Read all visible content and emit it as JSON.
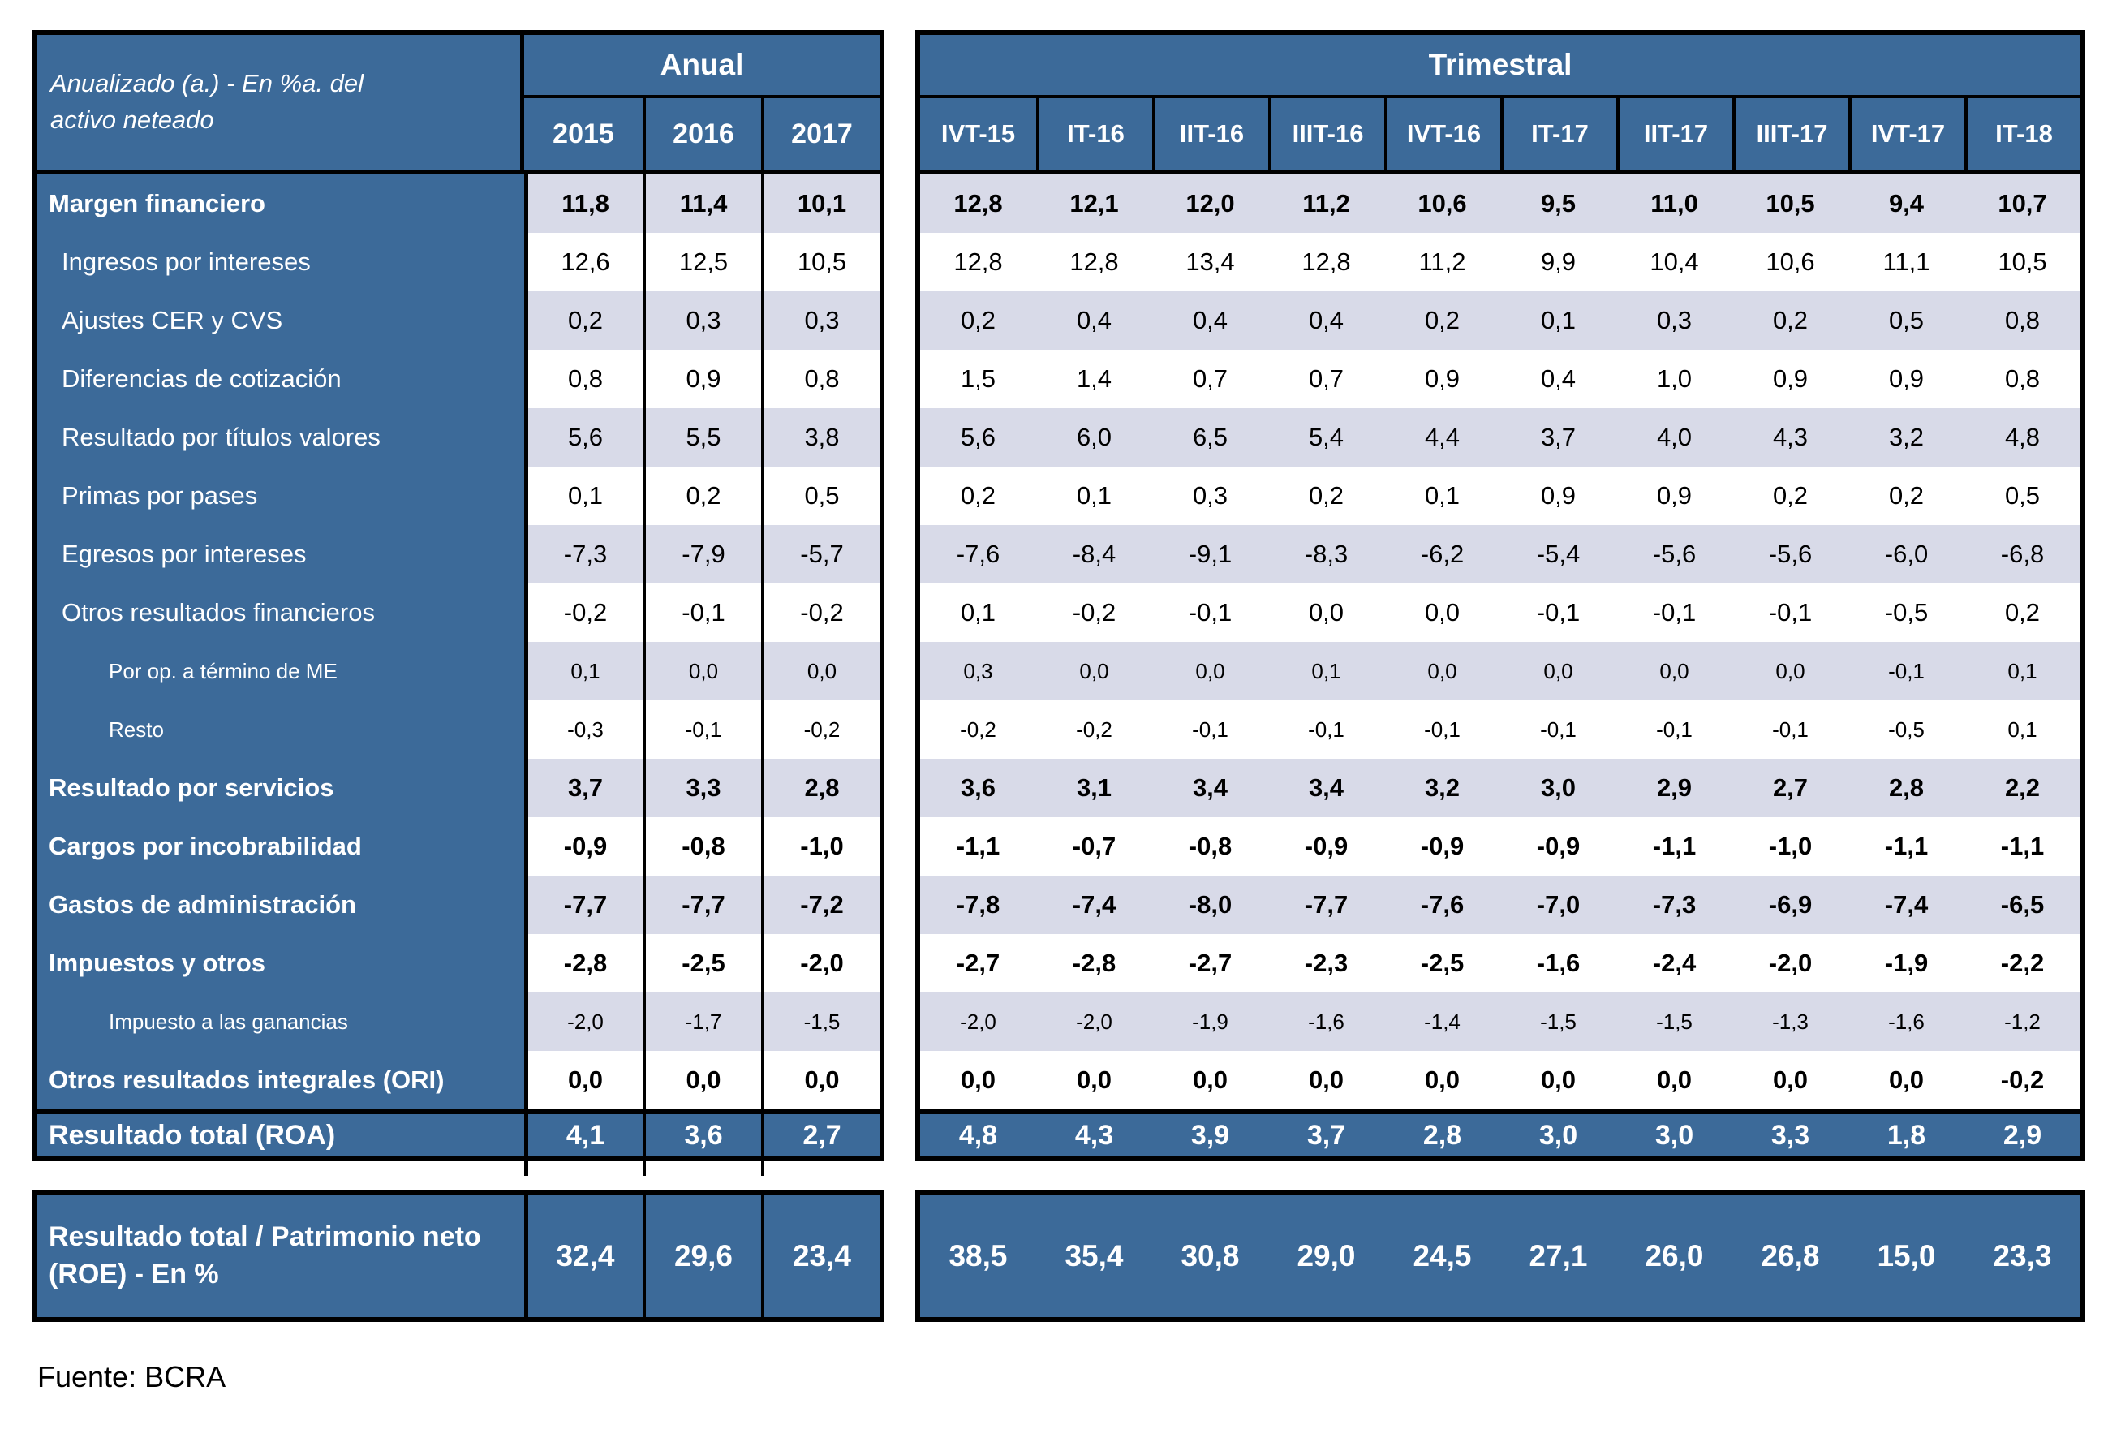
{
  "header": {
    "corner_label": "Anualizado (a.) - En %a. del activo neteado",
    "annual_group": "Anual",
    "quarterly_group": "Trimestral",
    "annual_columns": [
      "2015",
      "2016",
      "2017"
    ],
    "quarterly_columns": [
      "IVT-15",
      "IT-16",
      "IIT-16",
      "IIIT-16",
      "IVT-16",
      "IT-17",
      "IIT-17",
      "IIIT-17",
      "IVT-17",
      "IT-18"
    ]
  },
  "rows": [
    {
      "label": "Margen financiero",
      "style": "bold",
      "annual": [
        "11,8",
        "11,4",
        "10,1"
      ],
      "quarterly": [
        "12,8",
        "12,1",
        "12,0",
        "11,2",
        "10,6",
        "9,5",
        "11,0",
        "10,5",
        "9,4",
        "10,7"
      ]
    },
    {
      "label": "Ingresos por intereses",
      "style": "normal",
      "annual": [
        "12,6",
        "12,5",
        "10,5"
      ],
      "quarterly": [
        "12,8",
        "12,8",
        "13,4",
        "12,8",
        "11,2",
        "9,9",
        "10,4",
        "10,6",
        "11,1",
        "10,5"
      ]
    },
    {
      "label": "Ajustes CER y CVS",
      "style": "normal",
      "annual": [
        "0,2",
        "0,3",
        "0,3"
      ],
      "quarterly": [
        "0,2",
        "0,4",
        "0,4",
        "0,4",
        "0,2",
        "0,1",
        "0,3",
        "0,2",
        "0,5",
        "0,8"
      ]
    },
    {
      "label": "Diferencias de cotización",
      "style": "normal",
      "annual": [
        "0,8",
        "0,9",
        "0,8"
      ],
      "quarterly": [
        "1,5",
        "1,4",
        "0,7",
        "0,7",
        "0,9",
        "0,4",
        "1,0",
        "0,9",
        "0,9",
        "0,8"
      ]
    },
    {
      "label": "Resultado por títulos valores",
      "style": "normal",
      "annual": [
        "5,6",
        "5,5",
        "3,8"
      ],
      "quarterly": [
        "5,6",
        "6,0",
        "6,5",
        "5,4",
        "4,4",
        "3,7",
        "4,0",
        "4,3",
        "3,2",
        "4,8"
      ]
    },
    {
      "label": "Primas por pases",
      "style": "normal",
      "annual": [
        "0,1",
        "0,2",
        "0,5"
      ],
      "quarterly": [
        "0,2",
        "0,1",
        "0,3",
        "0,2",
        "0,1",
        "0,9",
        "0,9",
        "0,2",
        "0,2",
        "0,5"
      ]
    },
    {
      "label": "Egresos por intereses",
      "style": "normal",
      "annual": [
        "-7,3",
        "-7,9",
        "-5,7"
      ],
      "quarterly": [
        "-7,6",
        "-8,4",
        "-9,1",
        "-8,3",
        "-6,2",
        "-5,4",
        "-5,6",
        "-5,6",
        "-6,0",
        "-6,8"
      ]
    },
    {
      "label": "Otros resultados financieros",
      "style": "normal",
      "annual": [
        "-0,2",
        "-0,1",
        "-0,2"
      ],
      "quarterly": [
        "0,1",
        "-0,2",
        "-0,1",
        "0,0",
        "0,0",
        "-0,1",
        "-0,1",
        "-0,1",
        "-0,5",
        "0,2"
      ]
    },
    {
      "label": "Por op. a término de ME",
      "style": "sub",
      "annual": [
        "0,1",
        "0,0",
        "0,0"
      ],
      "quarterly": [
        "0,3",
        "0,0",
        "0,0",
        "0,1",
        "0,0",
        "0,0",
        "0,0",
        "0,0",
        "-0,1",
        "0,1"
      ]
    },
    {
      "label": "Resto",
      "style": "sub",
      "annual": [
        "-0,3",
        "-0,1",
        "-0,2"
      ],
      "quarterly": [
        "-0,2",
        "-0,2",
        "-0,1",
        "-0,1",
        "-0,1",
        "-0,1",
        "-0,1",
        "-0,1",
        "-0,5",
        "0,1"
      ]
    },
    {
      "label": "Resultado por servicios",
      "style": "bold",
      "annual": [
        "3,7",
        "3,3",
        "2,8"
      ],
      "quarterly": [
        "3,6",
        "3,1",
        "3,4",
        "3,4",
        "3,2",
        "3,0",
        "2,9",
        "2,7",
        "2,8",
        "2,2"
      ]
    },
    {
      "label": "Cargos por incobrabilidad",
      "style": "bold",
      "annual": [
        "-0,9",
        "-0,8",
        "-1,0"
      ],
      "quarterly": [
        "-1,1",
        "-0,7",
        "-0,8",
        "-0,9",
        "-0,9",
        "-0,9",
        "-1,1",
        "-1,0",
        "-1,1",
        "-1,1"
      ]
    },
    {
      "label": "Gastos de administración",
      "style": "bold",
      "annual": [
        "-7,7",
        "-7,7",
        "-7,2"
      ],
      "quarterly": [
        "-7,8",
        "-7,4",
        "-8,0",
        "-7,7",
        "-7,6",
        "-7,0",
        "-7,3",
        "-6,9",
        "-7,4",
        "-6,5"
      ]
    },
    {
      "label": "Impuestos y otros",
      "style": "bold",
      "annual": [
        "-2,8",
        "-2,5",
        "-2,0"
      ],
      "quarterly": [
        "-2,7",
        "-2,8",
        "-2,7",
        "-2,3",
        "-2,5",
        "-1,6",
        "-2,4",
        "-2,0",
        "-1,9",
        "-2,2"
      ]
    },
    {
      "label": "Impuesto a las ganancias",
      "style": "sub",
      "annual": [
        "-2,0",
        "-1,7",
        "-1,5"
      ],
      "quarterly": [
        "-2,0",
        "-2,0",
        "-1,9",
        "-1,6",
        "-1,4",
        "-1,5",
        "-1,5",
        "-1,3",
        "-1,6",
        "-1,2"
      ]
    },
    {
      "label": "Otros resultados integrales (ORI)",
      "style": "bold",
      "annual": [
        "0,0",
        "0,0",
        "0,0"
      ],
      "quarterly": [
        "0,0",
        "0,0",
        "0,0",
        "0,0",
        "0,0",
        "0,0",
        "0,0",
        "0,0",
        "0,0",
        "-0,2"
      ]
    }
  ],
  "totals": [
    {
      "label": "Resultado total (ROA)",
      "annual": [
        "4,1",
        "3,6",
        "2,7"
      ],
      "quarterly": [
        "4,8",
        "4,3",
        "3,9",
        "3,7",
        "2,8",
        "3,0",
        "3,0",
        "3,3",
        "1,8",
        "2,9"
      ]
    },
    {
      "label": "Resultado total / Patrimonio neto (ROE) - En %",
      "annual": [
        "32,4",
        "29,6",
        "23,4"
      ],
      "quarterly": [
        "38,5",
        "35,4",
        "30,8",
        "29,0",
        "24,5",
        "27,1",
        "26,0",
        "26,8",
        "15,0",
        "23,3"
      ]
    }
  ],
  "footer": {
    "source": "Fuente: BCRA"
  },
  "colors": {
    "header_blue": "#3C6A99",
    "band_lavender": "#D8DAE8",
    "band_white": "#FFFFFF",
    "border_black": "#000000",
    "marker_green": "#1F7A1F"
  }
}
